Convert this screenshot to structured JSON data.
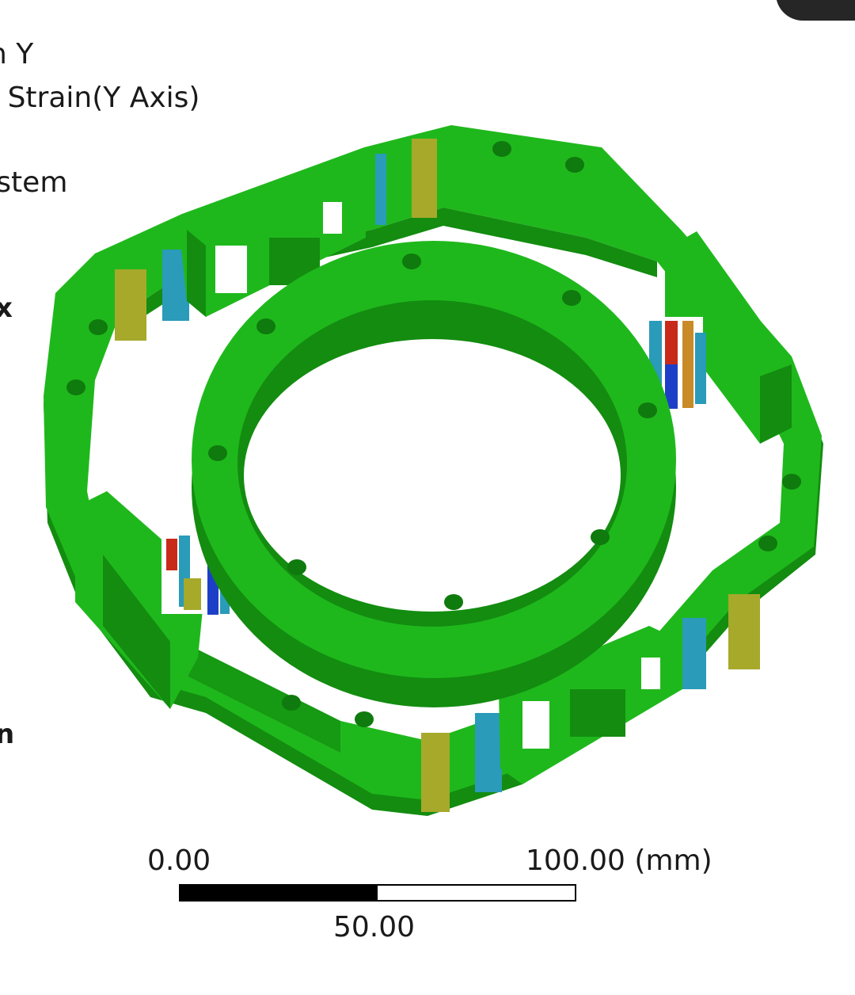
{
  "legend": {
    "title": "n Y",
    "subtitle": ": Strain(Y Axis)",
    "coordinate_system": "ystem",
    "max_label": "x",
    "min_label": "n"
  },
  "scale": {
    "start_label": "0.00",
    "end_label": "100.00 (mm)",
    "mid_label": "50.00",
    "filled_fraction": 0.5
  },
  "colors": {
    "body_green": "#1fb81c",
    "shade_green": "#138c10",
    "strain_yellow": "#a6a92a",
    "strain_orange": "#c98a28",
    "strain_cyan": "#2a9bb8",
    "strain_blue": "#1d3fc8",
    "strain_red": "#c82a1a"
  }
}
